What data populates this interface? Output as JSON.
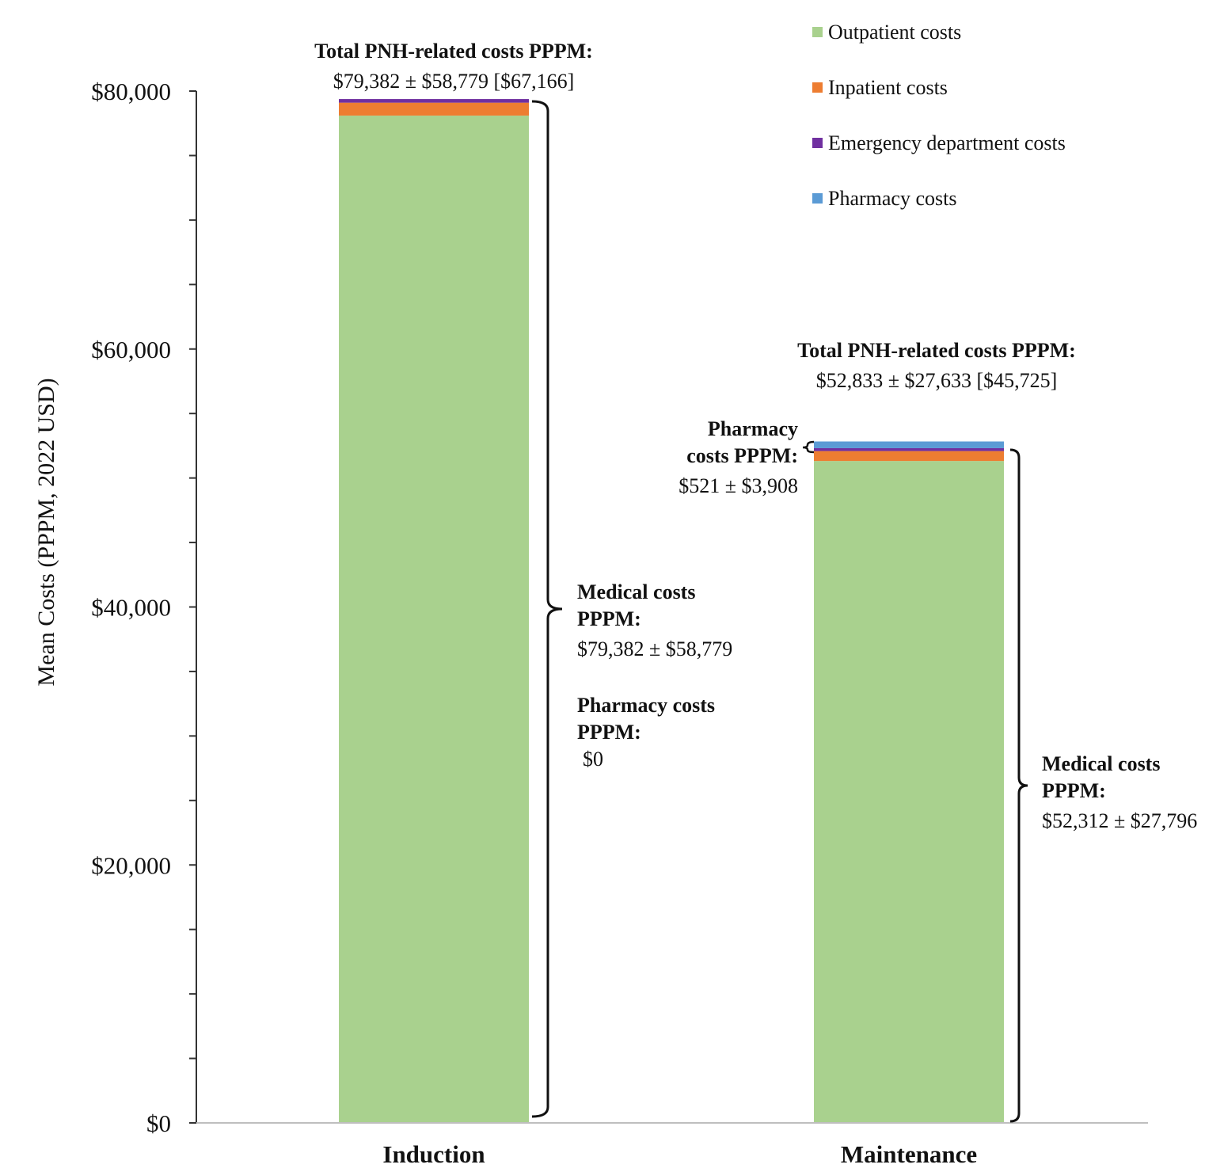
{
  "chart_data": {
    "type": "bar",
    "stacked": true,
    "categories": [
      "Induction",
      "Maintenance"
    ],
    "series": [
      {
        "name": "Outpatient costs",
        "color": "#a9d18e",
        "values": [
          78100,
          51320
        ]
      },
      {
        "name": "Inpatient costs",
        "color": "#ed7d31",
        "values": [
          1000,
          770
        ]
      },
      {
        "name": "Emergency department costs",
        "color": "#7030a0",
        "values": [
          282,
          222
        ]
      },
      {
        "name": "Pharmacy costs",
        "color": "#5b9bd5",
        "values": [
          0,
          521
        ]
      }
    ],
    "ylabel": "Mean Costs (PPPM, 2022 USD)",
    "ylim": [
      0,
      80000
    ],
    "yticks": [
      {
        "value": 0,
        "label": "$0"
      },
      {
        "value": 20000,
        "label": "$20,000"
      },
      {
        "value": 40000,
        "label": "$40,000"
      },
      {
        "value": 60000,
        "label": "$60,000"
      },
      {
        "value": 80000,
        "label": "$80,000"
      }
    ],
    "minor_tick_step": 5000,
    "legend_position": "top-right",
    "grid": false,
    "annotations": {
      "induction": {
        "total_title": "Total PNH-related costs PPPM:",
        "total_value": "$79,382 ± $58,779 [$67,166]",
        "medical_title_1": "Medical costs",
        "medical_title_2": "PPPM:",
        "medical_value": "$79,382 ± $58,779",
        "pharmacy_title_1": "Pharmacy costs",
        "pharmacy_title_2": "PPPM:",
        "pharmacy_value": "$0"
      },
      "maintenance": {
        "total_title": "Total PNH-related costs PPPM:",
        "total_value": "$52,833 ± $27,633 [$45,725]",
        "pharmacy_title_1": "Pharmacy",
        "pharmacy_title_2": "costs PPPM:",
        "pharmacy_value": "$521 ± $3,908",
        "medical_title_1": "Medical costs",
        "medical_title_2": "PPPM:",
        "medical_value": "$52,312 ± $27,796"
      }
    }
  }
}
